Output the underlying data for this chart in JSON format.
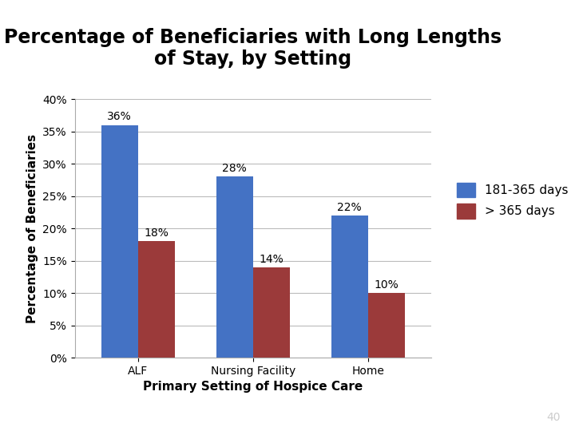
{
  "title": "Percentage of Beneficiaries with Long Lengths\nof Stay, by Setting",
  "categories": [
    "ALF",
    "Nursing Facility",
    "Home"
  ],
  "series": {
    "181-365 days": [
      0.36,
      0.28,
      0.22
    ],
    "> 365 days": [
      0.18,
      0.14,
      0.1
    ]
  },
  "labels": {
    "181-365 days": [
      "36%",
      "28%",
      "22%"
    ],
    "> 365 days": [
      "18%",
      "14%",
      "10%"
    ]
  },
  "colors": {
    "181-365 days": "#4472C4",
    "> 365 days": "#9B3A3A"
  },
  "xlabel": "Primary Setting of Hospice Care",
  "ylabel": "Percentage of Beneficiaries",
  "ylim": [
    0,
    0.4
  ],
  "yticks": [
    0.0,
    0.05,
    0.1,
    0.15,
    0.2,
    0.25,
    0.3,
    0.35,
    0.4
  ],
  "ytick_labels": [
    "0%",
    "5%",
    "10%",
    "15%",
    "20%",
    "25%",
    "30%",
    "35%",
    "40%"
  ],
  "title_fontsize": 17,
  "axis_label_fontsize": 11,
  "tick_fontsize": 10,
  "bar_label_fontsize": 10,
  "legend_fontsize": 11,
  "background_color": "#FFFFFF",
  "plot_bg_color": "#FFFFFF",
  "footer_color": "#3A8A74",
  "page_number": "40"
}
